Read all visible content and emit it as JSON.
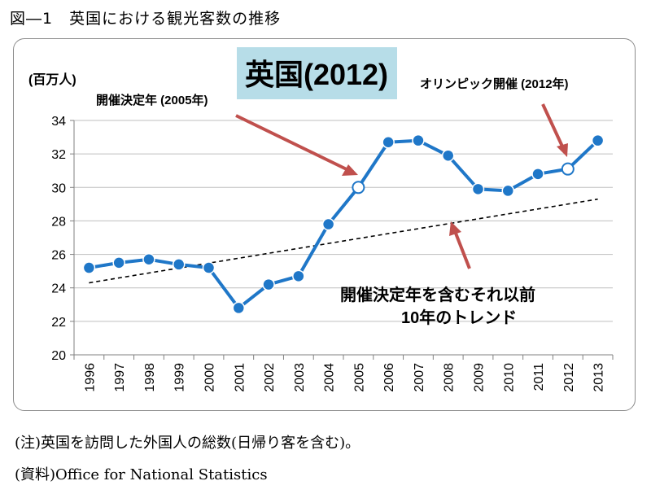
{
  "figure_title": "図―1　英国における観光客数の推移",
  "notes": {
    "note1": "(注)英国を訪問した外国人の総数(日帰り客を含む)。",
    "note2": "(資料)Office for National Statistics"
  },
  "colors": {
    "series": "#1f77c8",
    "frame": "#8c8c8c",
    "arrow": "#c0504d",
    "highlight_box": "#b7dde8"
  },
  "chart_data": {
    "type": "line",
    "title": "英国(2012)",
    "ylabel": "(百万人)",
    "xlabel": "",
    "ylim": [
      20,
      34
    ],
    "yticks": [
      20,
      22,
      24,
      26,
      28,
      30,
      32,
      34
    ],
    "grid": "horizontal",
    "categories": [
      "1996",
      "1997",
      "1998",
      "1999",
      "2000",
      "2001",
      "2002",
      "2003",
      "2004",
      "2005",
      "2006",
      "2007",
      "2008",
      "2009",
      "2010",
      "2011",
      "2012",
      "2013"
    ],
    "series": [
      {
        "values": [
          25.2,
          25.5,
          25.7,
          25.4,
          25.2,
          22.8,
          24.2,
          24.7,
          27.8,
          30.0,
          32.7,
          32.8,
          31.9,
          29.9,
          29.8,
          30.8,
          31.1,
          32.8
        ],
        "hollow_markers": [
          "2005",
          "2012"
        ]
      }
    ],
    "trend": {
      "from": {
        "x": "1996",
        "y": 24.3
      },
      "to": {
        "x": "2013",
        "y": 29.3
      },
      "style": "dashed"
    },
    "annotations": [
      {
        "text": "開催決定年 (2005年)",
        "target": "2005"
      },
      {
        "text": "オリンピック開催 (2012年)",
        "target": "2012"
      },
      {
        "text_line1": "開催決定年を含むそれ以前",
        "text_line2": "10年のトレンド",
        "target": "trend"
      }
    ]
  }
}
